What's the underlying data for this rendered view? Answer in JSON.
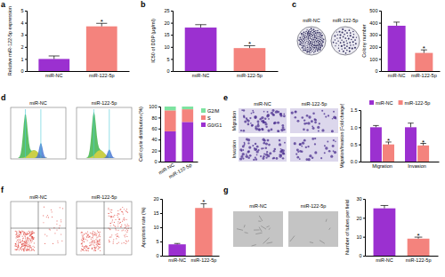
{
  "chart_data": [
    {
      "panel": "a",
      "type": "bar",
      "y_label": "Relative miR-122-5p expression",
      "categories": [
        "miR-NC",
        "miR-122-5p"
      ],
      "values": [
        1.0,
        3.7
      ],
      "errors": [
        0.25,
        0.25
      ],
      "annotations": [
        null,
        "*"
      ],
      "colors": [
        "#9b30d0",
        "#f4837d"
      ],
      "ylim": [
        0,
        5
      ],
      "yticks": [
        0,
        1,
        2,
        3,
        4,
        5
      ]
    },
    {
      "panel": "b",
      "type": "bar",
      "y_label": "IC50 of DDP (μg/ml)",
      "categories": [
        "miR-NC",
        "miR-122-5p"
      ],
      "values": [
        18.0,
        9.5
      ],
      "errors": [
        1.2,
        1.0
      ],
      "annotations": [
        null,
        "*"
      ],
      "colors": [
        "#9b30d0",
        "#f4837d"
      ],
      "ylim": [
        0,
        25
      ],
      "yticks": [
        0,
        5,
        10,
        15,
        20,
        25
      ]
    },
    {
      "panel": "c",
      "type": "bar",
      "image_labels": [
        "miR-NC",
        "miR-122-5p"
      ],
      "y_label": "Colony number",
      "categories": [
        "miR-NC",
        "miR-122-5p"
      ],
      "values": [
        375,
        150
      ],
      "errors": [
        30,
        25
      ],
      "annotations": [
        null,
        "*"
      ],
      "colors": [
        "#9b30d0",
        "#f4837d"
      ],
      "ylim": [
        0,
        500
      ],
      "yticks": [
        0,
        100,
        200,
        300,
        400,
        500
      ]
    },
    {
      "panel": "d",
      "type": "bar",
      "stacked": true,
      "legend": "right",
      "image_labels": [
        "miR-NC",
        "miR-122-5p"
      ],
      "y_label": "Cell cycle distribution (%)",
      "categories": [
        "miR-NC",
        "miR-122-5p"
      ],
      "series": [
        {
          "name": "G0/G1",
          "color": "#9b30d0",
          "values": [
            55,
            72
          ]
        },
        {
          "name": "S",
          "color": "#f4837d",
          "values": [
            38,
            23
          ]
        },
        {
          "name": "G2/M",
          "color": "#7de3a0",
          "values": [
            7,
            5
          ]
        }
      ],
      "ylim": [
        0,
        100
      ],
      "yticks": [
        0,
        20,
        40,
        60,
        80,
        100
      ]
    },
    {
      "panel": "e",
      "type": "bar",
      "legend": "top",
      "image_labels": [
        "miR-NC",
        "miR-122-5p"
      ],
      "row_labels": [
        "Migration",
        "Invasion"
      ],
      "y_label": "Migration/Invasion (Fold change)",
      "categories": [
        "Migration",
        "Invasion"
      ],
      "series": [
        {
          "name": "miR-NC",
          "color": "#9b30d0",
          "values": [
            1.0,
            1.0
          ],
          "errors": [
            0.05,
            0.12
          ]
        },
        {
          "name": "miR-122-5p",
          "color": "#f4837d",
          "values": [
            0.5,
            0.47
          ],
          "errors": [
            0.07,
            0.06
          ],
          "annotations": [
            "*",
            "*"
          ]
        }
      ],
      "ylim": [
        0,
        1.5
      ],
      "yticks": [
        {
          "value": 0,
          "label": "0.0"
        },
        0.5,
        {
          "value": 1,
          "label": "1.0"
        },
        1.5
      ]
    },
    {
      "panel": "f",
      "type": "bar",
      "image_labels": [
        "miR-NC",
        "miR-122-5p"
      ],
      "y_label": "Apoptosis rate (%)",
      "categories": [
        "miR-NC",
        "miR-122-5p"
      ],
      "values": [
        4.0,
        16.8
      ],
      "errors": [
        0.3,
        1.5
      ],
      "annotations": [
        null,
        "*"
      ],
      "colors": [
        "#9b30d0",
        "#f4837d"
      ],
      "ylim": [
        0,
        20
      ],
      "yticks": [
        0,
        5,
        10,
        15,
        20
      ]
    },
    {
      "panel": "g",
      "type": "bar",
      "image_labels": [
        "miR-NC",
        "miR-122-5p"
      ],
      "y_label": "Number of tubes per field",
      "categories": [
        "miR-NC",
        "miR-122-5p"
      ],
      "values": [
        25,
        9
      ],
      "errors": [
        1.5,
        0.8
      ],
      "annotations": [
        null,
        "*"
      ],
      "colors": [
        "#9b30d0",
        "#f4837d"
      ],
      "ylim": [
        0,
        30
      ],
      "yticks": [
        0,
        10,
        20,
        30
      ]
    }
  ]
}
